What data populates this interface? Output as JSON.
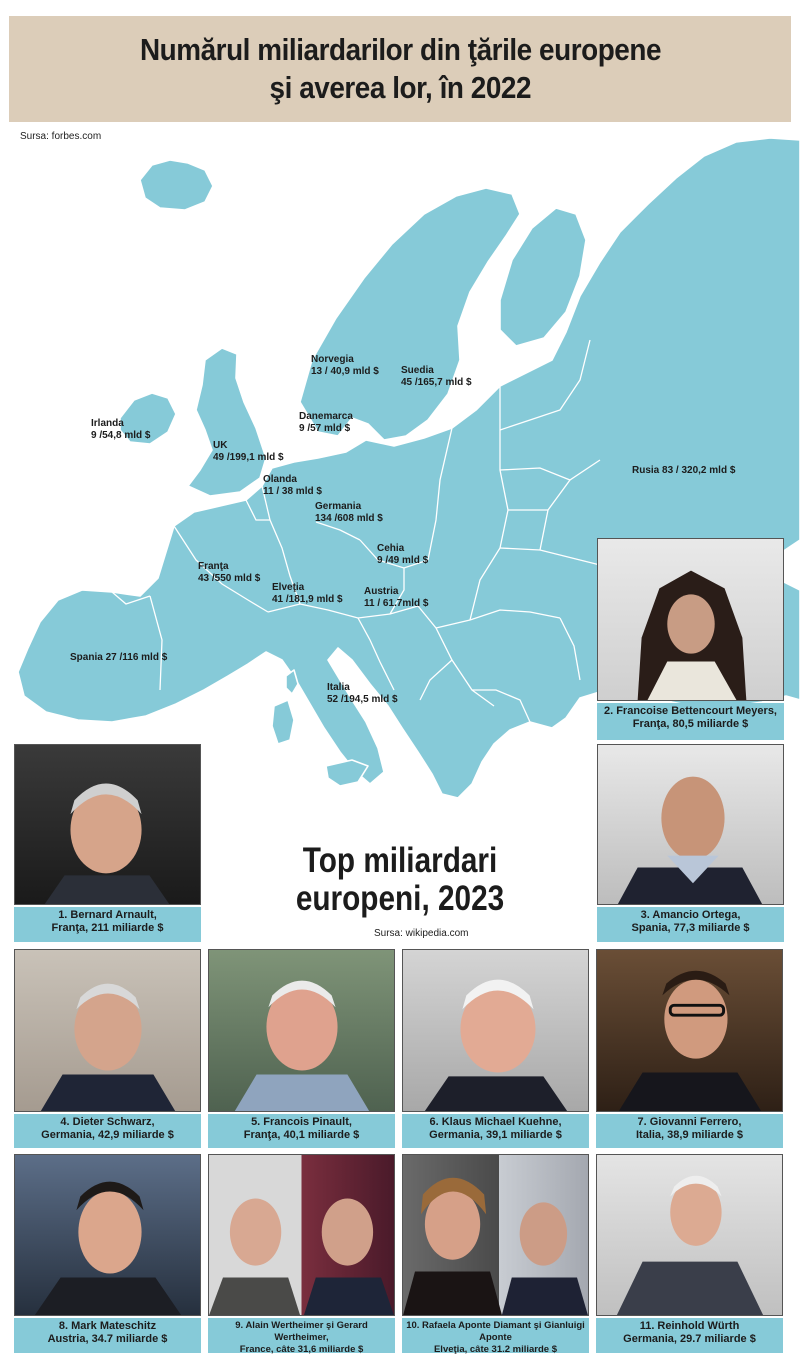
{
  "title": {
    "line1": "Numărul miliardarilor din ţările europene",
    "line2": "şi averea lor, în 2022"
  },
  "map_source": "Sursa: forbes.com",
  "countries": [
    {
      "name": "Norvegia",
      "value": "13 / 40,9 mld $"
    },
    {
      "name": "Suedia",
      "value": "45 /165,7 mld $"
    },
    {
      "name": "Irlanda",
      "value": "9 /54,8 mld $"
    },
    {
      "name": "Danemarca",
      "value": "9 /57 mld $"
    },
    {
      "name": "UK",
      "value": "49 /199,1 mld $"
    },
    {
      "name": "Olanda",
      "value": "11 / 38 mld $"
    },
    {
      "name": "Germania",
      "value": "134 /608 mld $"
    },
    {
      "name": "Rusia 83 / 320,2 mld $",
      "value": ""
    },
    {
      "name": "Cehia",
      "value": "9 /49 mld $"
    },
    {
      "name": "Franţa",
      "value": "43 /550 mld $"
    },
    {
      "name": "Elveţia",
      "value": "41 /181,9 mld $"
    },
    {
      "name": "Austria",
      "value": "11 / 61.7mld $"
    },
    {
      "name": "Spania 27 /116 mld $",
      "value": ""
    },
    {
      "name": "Italia",
      "value": "52 /194,5 mld $"
    }
  ],
  "top": {
    "heading_line1": "Top miliardari",
    "heading_line2": "europeni, 2023",
    "source": "Sursa: wikipedia.com"
  },
  "billionaires": [
    {
      "line1": "1. Bernard Arnault,",
      "line2": "Franţa,  211 miliarde $"
    },
    {
      "line1": "2. Francoise Bettencourt Meyers,",
      "line2": "Franţa,  80,5 miliarde $"
    },
    {
      "line1": "3. Amancio Ortega,",
      "line2": "Spania, 77,3 miliarde $"
    },
    {
      "line1": "4. Dieter Schwarz,",
      "line2": "Germania, 42,9 miliarde $"
    },
    {
      "line1": "5. Francois Pinault,",
      "line2": "Franţa, 40,1 miliarde $"
    },
    {
      "line1": "6. Klaus Michael Kuehne,",
      "line2": "Germania, 39,1 miliarde $"
    },
    {
      "line1": "7. Giovanni Ferrero,",
      "line2": "Italia, 38,9 miliarde $"
    },
    {
      "line1": "8. Mark Mateschitz",
      "line2": "Austria, 34.7 miliarde $"
    },
    {
      "line1": "9. Alain Wertheimer şi Gerard Wertheimer,",
      "line2": "France, câte 31,6 miliarde $"
    },
    {
      "line1": "10. Rafaela Aponte Diamant şi Gianluigi Aponte",
      "line2": "Elveţia, câte 31.2 miliarde $"
    },
    {
      "line1": "11. Reinhold Würth",
      "line2": "Germania, 29.7 miliarde $"
    }
  ],
  "colors": {
    "land": "#86cad8",
    "title_bg": "#dccdb9",
    "caption_bg": "#86cad8"
  }
}
